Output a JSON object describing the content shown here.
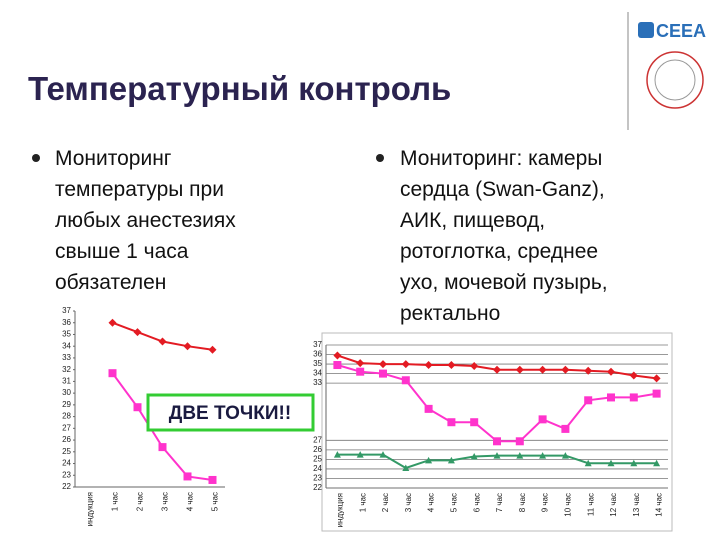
{
  "slide": {
    "title": "Температурный контроль",
    "logo": "CEEA",
    "left_bullet": [
      "Мониторинг",
      "температуры при",
      "любых анестезиях",
      "свыше 1 часа",
      "обязателен"
    ],
    "right_bullet": [
      "Мониторинг: камеры",
      "сердца (Swan-Ganz),",
      "АИК, пищевод,",
      "ротоглотка, среднее",
      "ухо, мочевой пузырь,",
      "ректально"
    ]
  },
  "chart_data": [
    {
      "type": "line",
      "annotation": "ДВЕ ТОЧКИ!!",
      "categories": [
        "индукция",
        "1 час",
        "2 час",
        "3 час",
        "4 час",
        "5 час"
      ],
      "ylim": [
        22,
        37
      ],
      "yticks": [
        22,
        23,
        24,
        25,
        26,
        27,
        28,
        29,
        30,
        31,
        32,
        33,
        34,
        35,
        36,
        37
      ],
      "grid": false,
      "series": [
        {
          "color": "#e31b23",
          "marker": "diamond",
          "values": [
            null,
            36.0,
            35.2,
            34.4,
            34.0,
            33.7
          ]
        },
        {
          "color": "#ff33cc",
          "marker": "square",
          "values": [
            null,
            31.7,
            28.8,
            25.4,
            22.9,
            22.6
          ]
        }
      ]
    },
    {
      "type": "line",
      "categories": [
        "индукция",
        "1 час",
        "2 час",
        "3 час",
        "4 час",
        "5 час",
        "6 час",
        "7 час",
        "8 час",
        "9 час",
        "10 час",
        "11 час",
        "12 час",
        "13 час",
        "14 час"
      ],
      "ylim": [
        22,
        37
      ],
      "yticks": [
        22,
        23,
        24,
        25,
        26,
        27,
        33,
        34,
        35,
        36,
        37
      ],
      "grid": true,
      "series": [
        {
          "color": "#e31b23",
          "marker": "diamond",
          "values": [
            35.9,
            35.1,
            35.0,
            35.0,
            34.9,
            34.9,
            34.8,
            34.4,
            34.4,
            34.4,
            34.4,
            34.3,
            34.2,
            33.8,
            33.5
          ]
        },
        {
          "color": "#ff33cc",
          "marker": "square",
          "values": [
            34.9,
            34.2,
            34.0,
            33.3,
            30.3,
            28.9,
            28.9,
            26.9,
            26.9,
            29.2,
            28.2,
            31.2,
            31.5,
            31.5,
            31.9
          ]
        },
        {
          "color": "#339966",
          "marker": "triangle",
          "values": [
            25.5,
            25.5,
            25.5,
            24.1,
            24.9,
            24.9,
            25.3,
            25.4,
            25.4,
            25.4,
            25.4,
            24.6,
            24.6,
            24.6,
            24.6
          ]
        }
      ]
    }
  ]
}
